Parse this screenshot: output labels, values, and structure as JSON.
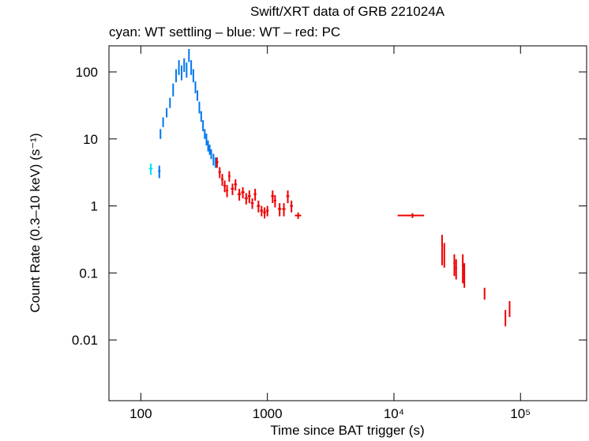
{
  "chart_data": {
    "type": "scatter",
    "title": "Swift/XRT data of GRB 221024A",
    "subtitle": "cyan: WT settling – blue: WT – red: PC",
    "x_label": "Time since BAT trigger (s)",
    "y_label": "Count Rate (0.3–10 keV) (s⁻¹)",
    "xscale": "log",
    "yscale": "log",
    "xlim": [
      56,
      333000
    ],
    "ylim": [
      0.00124,
      245
    ],
    "xticks": [
      100,
      1000,
      {
        "value": 10000,
        "label": "10⁴"
      },
      {
        "value": 100000,
        "label": "10⁵"
      }
    ],
    "yticks": [
      100,
      10,
      1,
      0.1,
      0.01
    ],
    "series": [
      {
        "name": "WT settling",
        "color": "#00e5ee",
        "x": [
          120
        ],
        "values": [
          3.6
        ],
        "yerr": [
          0.7
        ],
        "xerr": [
          4
        ]
      },
      {
        "name": "WT",
        "color": "#0077ee",
        "x": [
          140,
          143,
          150,
          160,
          170,
          180,
          190,
          200,
          210,
          220,
          230,
          240,
          250,
          260,
          270,
          280,
          290,
          300,
          310,
          320,
          330,
          340,
          350,
          360,
          375,
          390
        ],
        "values": [
          3.3,
          12,
          18,
          25,
          35,
          55,
          90,
          120,
          100,
          130,
          110,
          180,
          120,
          90,
          60,
          45,
          30,
          22,
          16,
          12,
          10,
          8,
          7,
          6,
          5,
          4.5
        ],
        "yerr": [
          0.7,
          2,
          3,
          4,
          6,
          12,
          20,
          30,
          25,
          30,
          28,
          40,
          30,
          20,
          12,
          8,
          6,
          4,
          3,
          2,
          2,
          1.5,
          1.2,
          1,
          1,
          0.8
        ],
        "xerr": [
          3,
          1.5,
          1.5,
          1.5,
          1.5,
          1.5,
          1.5,
          1.5,
          1.5,
          1.5,
          1.5,
          1.5,
          1.5,
          1.5,
          1.5,
          1.5,
          1.5,
          1.5,
          1.5,
          1.5,
          1.5,
          1.5,
          1.5,
          1.5,
          1.5,
          1.5
        ]
      },
      {
        "name": "PC",
        "color": "#ee0000",
        "x": [
          400,
          420,
          440,
          460,
          480,
          500,
          530,
          560,
          600,
          640,
          680,
          720,
          760,
          800,
          850,
          900,
          950,
          1000,
          1100,
          1150,
          1250,
          1350,
          1450,
          1550,
          1750,
          14000,
          24000,
          25000,
          30000,
          31000,
          35000,
          36000,
          52000,
          76000,
          82000
        ],
        "values": [
          4.5,
          3.2,
          2.5,
          2.0,
          1.7,
          2.8,
          1.8,
          2.1,
          1.5,
          1.6,
          1.3,
          1.4,
          1.1,
          1.5,
          1.0,
          0.85,
          0.8,
          0.85,
          1.4,
          1.2,
          0.9,
          0.9,
          1.4,
          1.0,
          0.72,
          0.72,
          0.25,
          0.2,
          0.14,
          0.12,
          0.13,
          0.1,
          0.05,
          0.022,
          0.03
        ],
        "yerr": [
          0.8,
          0.6,
          0.5,
          0.4,
          0.35,
          0.5,
          0.35,
          0.4,
          0.3,
          0.3,
          0.25,
          0.3,
          0.2,
          0.3,
          0.2,
          0.15,
          0.15,
          0.15,
          0.3,
          0.25,
          0.2,
          0.2,
          0.3,
          0.2,
          0.08,
          0.06,
          0.12,
          0.08,
          0.05,
          0.04,
          0.06,
          0.04,
          0.01,
          0.006,
          0.008
        ],
        "xerr": [
          10,
          10,
          10,
          10,
          10,
          10,
          15,
          15,
          20,
          20,
          20,
          20,
          20,
          20,
          25,
          25,
          25,
          25,
          30,
          25,
          40,
          40,
          40,
          40,
          100,
          3300,
          300,
          300,
          500,
          500,
          500,
          500,
          600,
          800,
          800
        ]
      }
    ]
  }
}
